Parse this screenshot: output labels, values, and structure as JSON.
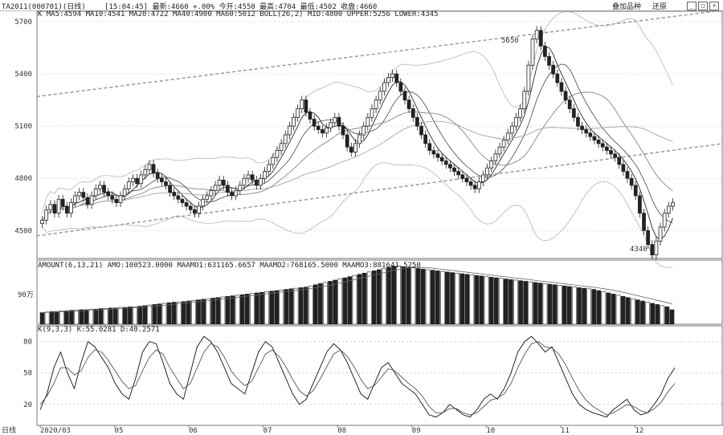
{
  "header": {
    "symbol": "TA2011(000701)(日线)",
    "quote": "[15:04:45] 最新:4660 +.00% 今开:4550 最高:4704 最低:4502 收盘:4660",
    "btn_overlay": "叠加品种",
    "btn_restore": "还原"
  },
  "main": {
    "indicator_text": "K MA5:4594 MA10:4541 MA20:4722 MA40:4900 MA60:5012 BOLL(26,2) MID:4800 UPPER:5256 LOWER:4345",
    "max_label": "5650",
    "min_label": "4340"
  },
  "volume": {
    "indicator_text": "AMOUNT(6,13,21) AMO:100523.0000 MAAMO1:631165.6657 MAAMO2:768165.5000 MAAMO3:881641.5250",
    "unit_label": "90万"
  },
  "kdj": {
    "indicator_text": "K(9,3,3) K:55.0281 D:40.2571"
  },
  "footer": {
    "period_label": "日线"
  },
  "chart_data": [
    {
      "type": "candlestick",
      "title": "",
      "y_ticks": [
        4500,
        4800,
        5100,
        5400,
        5700
      ],
      "ylim": [
        4340,
        5760
      ],
      "x_ticks": [
        "2020/03",
        "05",
        "06",
        "07",
        "08",
        "09",
        "10",
        "11",
        "12"
      ],
      "close": [
        4560,
        4620,
        4650,
        4600,
        4680,
        4640,
        4600,
        4660,
        4700,
        4720,
        4690,
        4650,
        4700,
        4740,
        4760,
        4720,
        4700,
        4680,
        4660,
        4700,
        4740,
        4780,
        4800,
        4770,
        4820,
        4850,
        4880,
        4830,
        4800,
        4780,
        4760,
        4720,
        4700,
        4680,
        4660,
        4640,
        4620,
        4600,
        4640,
        4680,
        4700,
        4730,
        4760,
        4790,
        4760,
        4720,
        4700,
        4730,
        4760,
        4800,
        4820,
        4790,
        4760,
        4800,
        4840,
        4880,
        4920,
        4960,
        5000,
        5050,
        5100,
        5150,
        5200,
        5250,
        5180,
        5140,
        5100,
        5080,
        5060,
        5090,
        5120,
        5150,
        5100,
        5050,
        4980,
        4950,
        5000,
        5050,
        5100,
        5150,
        5200,
        5250,
        5300,
        5350,
        5380,
        5400,
        5350,
        5300,
        5250,
        5200,
        5150,
        5100,
        5050,
        5000,
        4960,
        4940,
        4920,
        4900,
        4880,
        4860,
        4840,
        4820,
        4800,
        4780,
        4760,
        4740,
        4780,
        4820,
        4860,
        4900,
        4940,
        4980,
        5020,
        5060,
        5100,
        5150,
        5200,
        5300,
        5450,
        5600,
        5650,
        5560,
        5500,
        5450,
        5400,
        5350,
        5300,
        5250,
        5200,
        5150,
        5100,
        5080,
        5060,
        5040,
        5020,
        5000,
        4980,
        4960,
        4940,
        4920,
        4880,
        4840,
        4800,
        4760,
        4700,
        4600,
        4500,
        4420,
        4360,
        4440,
        4520,
        4600,
        4640,
        4660
      ],
      "boll_upper": 5256,
      "boll_mid": 4800,
      "boll_lower": 4345
    },
    {
      "type": "bar",
      "title": "",
      "y_ticks_label": "90万",
      "values": [
        20,
        21,
        22,
        22,
        23,
        23,
        24,
        24,
        25,
        25,
        26,
        26,
        27,
        27,
        28,
        28,
        29,
        29,
        30,
        30,
        31,
        32,
        33,
        34,
        35,
        36,
        37,
        38,
        38,
        39,
        40,
        41,
        42,
        43,
        44,
        45,
        46,
        47,
        48,
        49,
        50,
        51,
        52,
        53,
        54,
        55,
        56,
        57,
        58,
        59,
        60,
        61,
        62,
        63,
        64,
        66,
        68,
        70,
        72,
        74,
        76,
        78,
        80,
        82,
        84,
        86,
        88,
        90,
        92,
        94,
        96,
        98,
        100,
        100,
        99,
        98,
        97,
        96,
        95,
        94,
        93,
        92,
        91,
        90,
        89,
        88,
        87,
        86,
        85,
        84,
        83,
        82,
        81,
        80,
        79,
        78,
        77,
        76,
        75,
        74,
        73,
        72,
        71,
        70,
        69,
        68,
        67,
        66,
        65,
        64,
        63,
        62,
        61,
        60,
        58,
        56,
        54,
        52,
        50,
        48,
        46,
        44,
        42,
        40,
        38,
        36,
        34,
        32,
        30,
        25
      ]
    },
    {
      "type": "line",
      "title": "",
      "y_ticks": [
        20,
        50,
        80
      ],
      "ylim": [
        0,
        95
      ],
      "series": [
        {
          "name": "K",
          "values": [
            15,
            30,
            55,
            70,
            50,
            35,
            60,
            80,
            75,
            65,
            55,
            40,
            30,
            25,
            45,
            70,
            80,
            78,
            60,
            40,
            30,
            25,
            50,
            75,
            85,
            80,
            70,
            55,
            40,
            35,
            30,
            50,
            70,
            80,
            75,
            60,
            45,
            30,
            20,
            25,
            40,
            55,
            70,
            78,
            72,
            60,
            45,
            30,
            25,
            40,
            55,
            60,
            50,
            40,
            35,
            30,
            20,
            10,
            8,
            12,
            20,
            15,
            10,
            8,
            15,
            25,
            30,
            25,
            35,
            50,
            70,
            80,
            85,
            78,
            70,
            75,
            60,
            45,
            30,
            20,
            15,
            12,
            10,
            8,
            15,
            20,
            25,
            15,
            10,
            12,
            20,
            30,
            45,
            55
          ]
        },
        {
          "name": "D",
          "values": [
            20,
            28,
            40,
            55,
            55,
            48,
            52,
            65,
            72,
            70,
            62,
            52,
            42,
            35,
            38,
            52,
            65,
            72,
            68,
            55,
            45,
            35,
            40,
            55,
            70,
            78,
            75,
            65,
            52,
            44,
            38,
            42,
            55,
            68,
            72,
            66,
            56,
            44,
            33,
            28,
            33,
            44,
            56,
            68,
            72,
            66,
            56,
            44,
            35,
            38,
            46,
            54,
            52,
            46,
            40,
            35,
            28,
            18,
            12,
            12,
            16,
            16,
            12,
            10,
            12,
            18,
            24,
            26,
            30,
            40,
            55,
            68,
            78,
            80,
            75,
            74,
            68,
            58,
            45,
            33,
            24,
            18,
            14,
            10,
            12,
            16,
            20,
            18,
            14,
            12,
            16,
            22,
            32,
            40
          ]
        }
      ]
    }
  ]
}
